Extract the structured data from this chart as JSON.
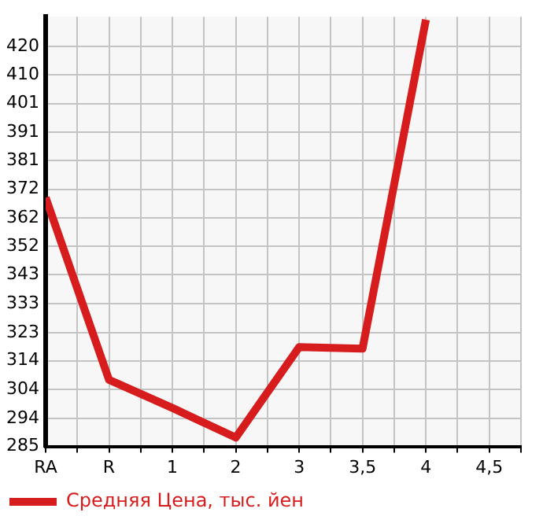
{
  "chart_data": {
    "type": "line",
    "categories": [
      "RA",
      "R",
      "1",
      "2",
      "3",
      "3,5",
      "4",
      "4,5"
    ],
    "series": [
      {
        "name": "Средняя Цена, тыс. йен",
        "color": "#d61c1c",
        "values": [
          369,
          307.5,
          298,
          288,
          318.5,
          318,
          429,
          null
        ]
      }
    ],
    "ylim": [
      285,
      430
    ],
    "yticks": [
      {
        "value": 285,
        "label": "285"
      },
      {
        "value": 294.4,
        "label": "294"
      },
      {
        "value": 304.3,
        "label": "304"
      },
      {
        "value": 313.9,
        "label": "314"
      },
      {
        "value": 323.4,
        "label": "323"
      },
      {
        "value": 333.2,
        "label": "333"
      },
      {
        "value": 342.9,
        "label": "343"
      },
      {
        "value": 352.5,
        "label": "352"
      },
      {
        "value": 362.1,
        "label": "362"
      },
      {
        "value": 371.8,
        "label": "372"
      },
      {
        "value": 381.4,
        "label": "381"
      },
      {
        "value": 391.1,
        "label": "391"
      },
      {
        "value": 400.7,
        "label": "401"
      },
      {
        "value": 410.4,
        "label": "410"
      },
      {
        "value": 420,
        "label": "420"
      }
    ],
    "grid": true,
    "legend": "bottom left",
    "marker": "none",
    "line_style": "solid"
  }
}
